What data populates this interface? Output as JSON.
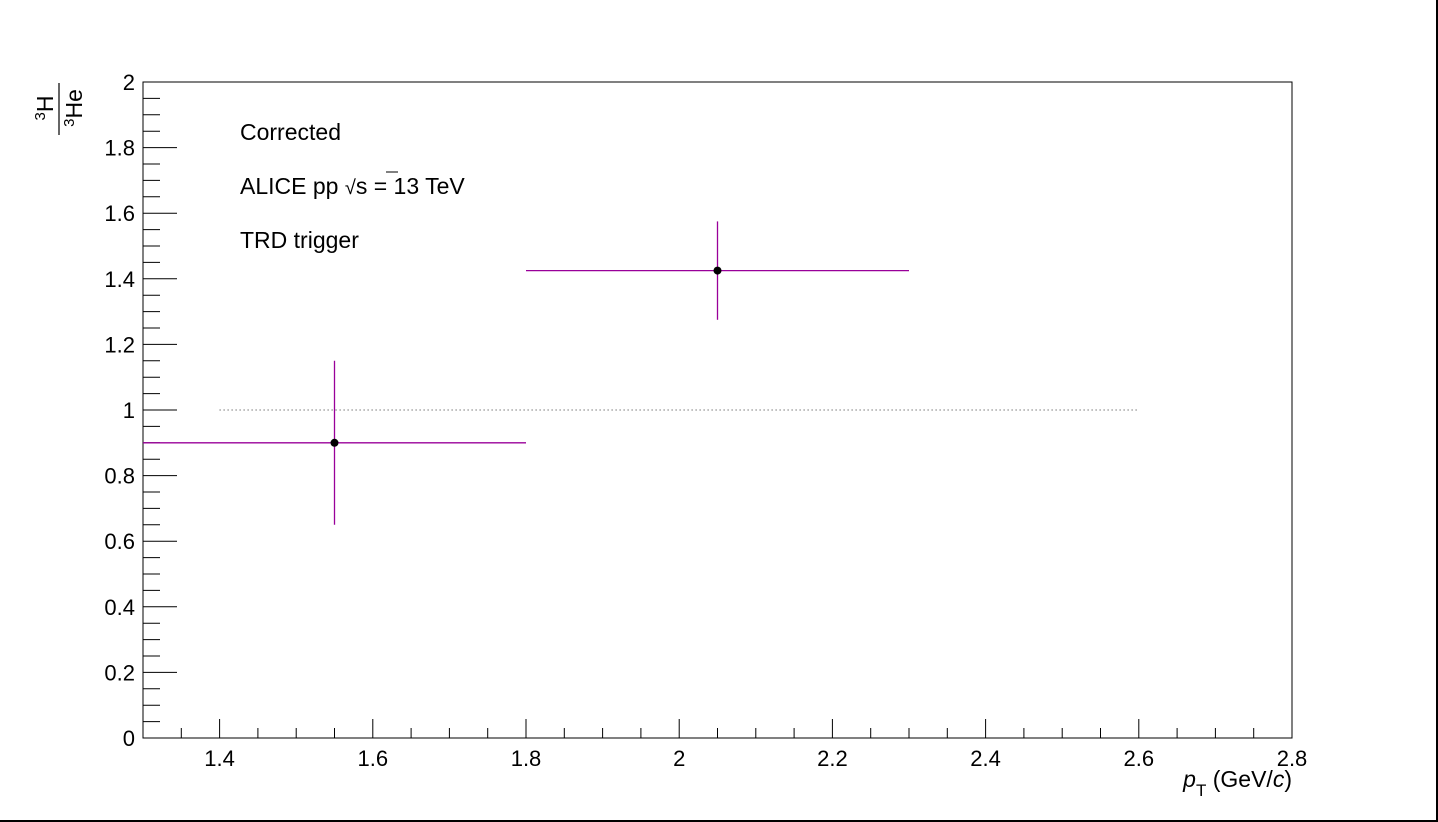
{
  "chart_data": {
    "type": "scatter",
    "xlabel": {
      "symbol": "p",
      "subscript": "T",
      "unit_open": " (GeV/",
      "unit_italic": "c",
      "unit_close": ")"
    },
    "ylabel": {
      "numerator_sup": "3",
      "numerator": "H",
      "denominator_sup": "3",
      "denominator": "He"
    },
    "xlim": [
      1.3,
      2.8
    ],
    "ylim": [
      0,
      2
    ],
    "x_ticks": [
      "1.4",
      "1.6",
      "1.8",
      "2",
      "2.2",
      "2.4",
      "2.6",
      "2.8"
    ],
    "y_ticks": [
      "0",
      "0.2",
      "0.4",
      "0.6",
      "0.8",
      "1",
      "1.2",
      "1.4",
      "1.6",
      "1.8",
      "2"
    ],
    "grid": false,
    "series": [
      {
        "points": [
          {
            "x": 1.55,
            "y": 0.9,
            "x_low": 1.3,
            "x_high": 1.8,
            "y_err": 0.25
          },
          {
            "x": 2.05,
            "y": 1.425,
            "x_low": 1.8,
            "x_high": 2.3,
            "y_err": 0.15
          }
        ],
        "marker_color": "#000000",
        "error_color": "#990099"
      }
    ],
    "reference_line": {
      "y": 1,
      "x_start": 1.4,
      "x_end": 2.6,
      "style": "dotted"
    },
    "annotations": {
      "line1": "Corrected",
      "line2_prefix": "ALICE pp ",
      "line2_sqrt": "√",
      "line2_s": "s",
      "line2_suffix": " = 13 TeV",
      "line3": "TRD trigger"
    }
  }
}
